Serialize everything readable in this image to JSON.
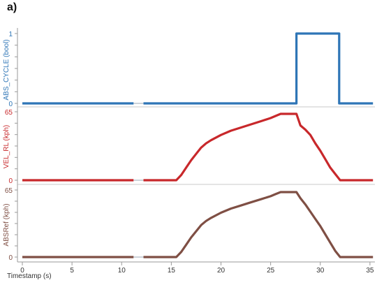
{
  "panel_label": "a)",
  "chart_data": {
    "type": "line",
    "xlabel": "Timestamp (s)",
    "xlim": [
      0,
      35.5
    ],
    "xticks": [
      0,
      5,
      10,
      15,
      20,
      25,
      30,
      35
    ],
    "xtick_labels": [
      "0",
      "5",
      "10",
      "15",
      "20",
      "25",
      "30",
      "35"
    ],
    "subplots": [
      {
        "ylabel": "ABS_CYCLE (bool)",
        "ylim": [
          0,
          1
        ],
        "ytick_labels": [
          "0",
          "1"
        ],
        "color": "#2e75b6",
        "series": [
          {
            "segments": [
              {
                "x": [
                  0,
                  11.2
                ],
                "y": [
                  0,
                  0
                ]
              },
              {
                "x": [
                  12.2,
                  27.6,
                  27.6,
                  31.9,
                  31.9,
                  35.3
                ],
                "y": [
                  0,
                  0,
                  1,
                  1,
                  0,
                  0
                ]
              }
            ]
          }
        ]
      },
      {
        "ylabel": "VEL_RL (kph)",
        "ylim": [
          0,
          65
        ],
        "ytick_labels": [
          "0",
          "65"
        ],
        "color": "#c8282b",
        "series": [
          {
            "segments": [
              {
                "x": [
                  0,
                  11.2
                ],
                "y": [
                  0,
                  0
                ]
              },
              {
                "x": [
                  12.2,
                  15.5,
                  16.0,
                  16.5,
                  17.0,
                  17.5,
                  18.0,
                  18.5,
                  19.0,
                  20.0,
                  21.0,
                  22.0,
                  23.0,
                  24.0,
                  25.0,
                  25.5,
                  26.0,
                  27.6,
                  28.0,
                  28.5,
                  29.0,
                  29.5,
                  30.0,
                  30.5,
                  31.0,
                  31.5,
                  32.0,
                  35.3
                ],
                "y": [
                  0,
                  0,
                  5,
                  12,
                  19,
                  25,
                  31,
                  35,
                  38,
                  43,
                  47,
                  50,
                  53,
                  56,
                  59,
                  61,
                  63,
                  63,
                  52,
                  48,
                  43,
                  35,
                  28,
                  20,
                  12,
                  6,
                  0,
                  0
                ]
              }
            ]
          }
        ]
      },
      {
        "ylabel": "ABSRef (kph)",
        "ylim": [
          0,
          65
        ],
        "ytick_labels": [
          "0",
          "65"
        ],
        "color": "#7f4f44",
        "series": [
          {
            "segments": [
              {
                "x": [
                  0,
                  11.2
                ],
                "y": [
                  0,
                  0
                ]
              },
              {
                "x": [
                  12.2,
                  15.5,
                  16.0,
                  16.5,
                  17.0,
                  17.5,
                  18.0,
                  18.5,
                  19.0,
                  20.0,
                  21.0,
                  22.0,
                  23.0,
                  24.0,
                  25.0,
                  25.5,
                  26.0,
                  27.6,
                  28.0,
                  28.5,
                  29.0,
                  29.5,
                  30.0,
                  30.5,
                  31.0,
                  31.5,
                  32.0,
                  35.3
                ],
                "y": [
                  0,
                  0,
                  5,
                  12,
                  19,
                  25,
                  31,
                  35,
                  38,
                  43,
                  47,
                  50,
                  53,
                  56,
                  59,
                  61,
                  63,
                  63,
                  57,
                  51,
                  44,
                  37,
                  30,
                  22,
                  14,
                  6,
                  0,
                  0
                ]
              }
            ]
          }
        ]
      }
    ]
  }
}
